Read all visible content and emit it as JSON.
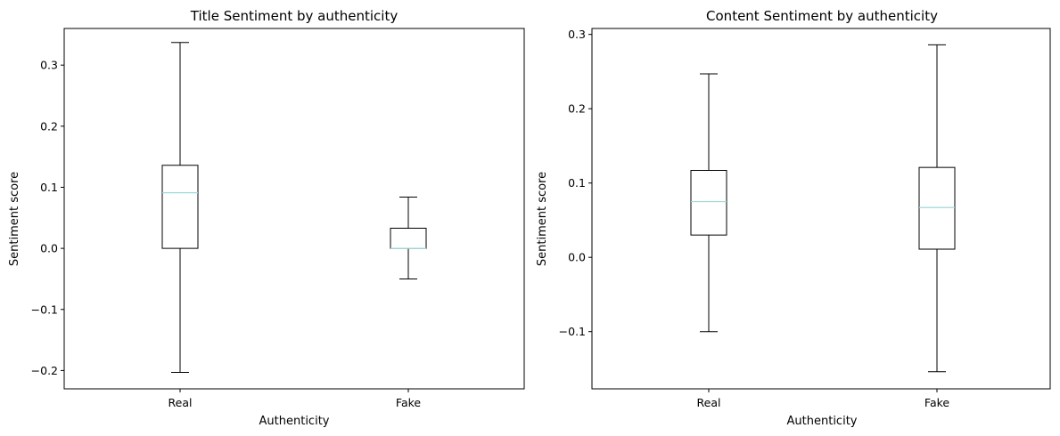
{
  "chart_data": [
    {
      "type": "box",
      "title": "Title Sentiment by authenticity",
      "xlabel": "Authenticity",
      "ylabel": "Sentiment score",
      "categories": [
        "Real",
        "Fake"
      ],
      "ylim": [
        -0.23,
        0.36
      ],
      "yticks": [
        -0.2,
        -0.1,
        0.0,
        0.1,
        0.2,
        0.3
      ],
      "ytick_labels": [
        "−0.2",
        "−0.1",
        "0.0",
        "0.1",
        "0.2",
        "0.3"
      ],
      "boxes": [
        {
          "whisker_low": -0.203,
          "q1": 0.0,
          "median": 0.091,
          "q3": 0.136,
          "whisker_high": 0.337
        },
        {
          "whisker_low": -0.05,
          "q1": 0.0,
          "median": 0.0,
          "q3": 0.033,
          "whisker_high": 0.084
        }
      ],
      "grid": false
    },
    {
      "type": "box",
      "title": "Content Sentiment by authenticity",
      "xlabel": "Authenticity",
      "ylabel": "Sentiment score",
      "categories": [
        "Real",
        "Fake"
      ],
      "ylim": [
        -0.177,
        0.308
      ],
      "yticks": [
        -0.1,
        0.0,
        0.1,
        0.2,
        0.3
      ],
      "ytick_labels": [
        "−0.1",
        "0.0",
        "0.1",
        "0.2",
        "0.3"
      ],
      "boxes": [
        {
          "whisker_low": -0.1,
          "q1": 0.03,
          "median": 0.075,
          "q3": 0.117,
          "whisker_high": 0.247
        },
        {
          "whisker_low": -0.154,
          "q1": 0.011,
          "median": 0.067,
          "q3": 0.121,
          "whisker_high": 0.286
        }
      ],
      "grid": false
    }
  ],
  "colors": {
    "median": "#9fd8d8",
    "box": "#000000"
  }
}
